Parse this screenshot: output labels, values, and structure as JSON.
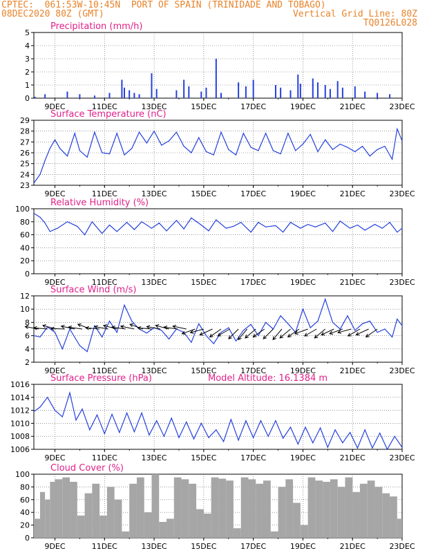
{
  "header": {
    "line1": "CPTEC:  061:53W-10:45N  PORT OF SPAIN (TRINIDADE AND TOBAGO)",
    "line2_left": "08DEC2020 80Z (GMT)",
    "line2_right": "Vertical Grid Line: 80Z",
    "line3_right": "TQ0126L028"
  },
  "colors": {
    "header": "#e8832a",
    "title": "#e0218a",
    "line": "#2440dc",
    "bar": "#2440dc",
    "cloud": "#a6a6a6",
    "grid": "#555555",
    "frame": "#000000"
  },
  "chart_data": [
    {
      "id": "precip",
      "type": "bar",
      "title": "Precipitation (mm/h)",
      "ylim": [
        0,
        5
      ],
      "yticks": [
        0,
        1,
        2,
        3,
        4,
        5
      ],
      "x_tick_labels": [
        "9DEC",
        "11DEC",
        "13DEC",
        "15DEC",
        "17DEC",
        "19DEC",
        "21DEC",
        "23DEC"
      ],
      "x_range_days": [
        8.15,
        23.0
      ],
      "x": [
        8.2,
        8.6,
        9.5,
        10.0,
        10.6,
        11.2,
        11.7,
        11.8,
        12.0,
        12.2,
        12.4,
        12.9,
        13.1,
        13.9,
        14.2,
        14.4,
        14.9,
        15.1,
        15.5,
        15.7,
        16.4,
        16.7,
        17.0,
        17.9,
        18.1,
        18.5,
        18.8,
        18.9,
        19.4,
        19.6,
        19.9,
        20.1,
        20.4,
        20.6,
        21.1,
        21.5,
        22.0,
        22.5
      ],
      "values": [
        0.1,
        0.3,
        0.5,
        0.3,
        0.2,
        0.4,
        1.4,
        0.8,
        0.6,
        0.4,
        0.3,
        1.9,
        0.7,
        0.6,
        1.4,
        0.9,
        0.5,
        0.8,
        3.0,
        0.4,
        1.2,
        0.9,
        1.4,
        1.0,
        0.8,
        0.6,
        1.8,
        1.1,
        1.5,
        1.2,
        1.0,
        0.7,
        1.3,
        0.8,
        0.9,
        0.5,
        0.4,
        0.3
      ]
    },
    {
      "id": "temp",
      "type": "line",
      "title": "Surface Temperature (nC)",
      "ylim": [
        23,
        29
      ],
      "yticks": [
        23,
        24,
        25,
        26,
        27,
        28,
        29
      ],
      "x_tick_labels": [
        "9DEC",
        "11DEC",
        "13DEC",
        "15DEC",
        "17DEC",
        "19DEC",
        "21DEC",
        "23DEC"
      ],
      "x_range_days": [
        8.15,
        23.0
      ],
      "x": [
        8.15,
        8.4,
        8.6,
        8.8,
        9.0,
        9.2,
        9.5,
        9.8,
        10.0,
        10.3,
        10.6,
        10.9,
        11.2,
        11.5,
        11.8,
        12.1,
        12.4,
        12.7,
        13.0,
        13.3,
        13.6,
        13.9,
        14.2,
        14.5,
        14.8,
        15.1,
        15.4,
        15.7,
        16.0,
        16.3,
        16.6,
        16.9,
        17.2,
        17.5,
        17.8,
        18.1,
        18.4,
        18.7,
        19.0,
        19.3,
        19.6,
        19.9,
        20.2,
        20.5,
        20.8,
        21.1,
        21.4,
        21.7,
        22.0,
        22.3,
        22.6,
        22.8,
        23.0
      ],
      "values": [
        23.2,
        24.0,
        25.3,
        26.4,
        27.2,
        26.4,
        25.7,
        27.8,
        26.2,
        25.6,
        27.9,
        26.0,
        25.9,
        27.8,
        25.8,
        26.4,
        27.9,
        26.9,
        28.0,
        26.7,
        27.1,
        27.9,
        26.6,
        26.0,
        27.4,
        26.1,
        25.8,
        27.9,
        26.3,
        25.8,
        27.8,
        26.5,
        26.2,
        27.8,
        26.2,
        25.9,
        27.8,
        26.2,
        26.8,
        27.7,
        26.1,
        27.2,
        26.3,
        26.8,
        26.5,
        26.1,
        26.6,
        25.7,
        26.3,
        26.6,
        25.4,
        28.2,
        27.1
      ]
    },
    {
      "id": "rh",
      "type": "line",
      "title": "Relative Humidity (%)",
      "ylim": [
        0,
        100
      ],
      "yticks": [
        0,
        20,
        40,
        60,
        80,
        100
      ],
      "x_tick_labels": [
        "9DEC",
        "11DEC",
        "13DEC",
        "15DEC",
        "17DEC",
        "19DEC",
        "21DEC",
        "23DEC"
      ],
      "x_range_days": [
        8.15,
        23.0
      ],
      "x": [
        8.15,
        8.4,
        8.6,
        8.8,
        9.1,
        9.5,
        9.9,
        10.2,
        10.5,
        10.9,
        11.2,
        11.5,
        11.9,
        12.2,
        12.5,
        12.9,
        13.2,
        13.5,
        13.9,
        14.2,
        14.5,
        14.9,
        15.2,
        15.5,
        15.9,
        16.2,
        16.5,
        16.9,
        17.2,
        17.5,
        17.9,
        18.2,
        18.5,
        18.9,
        19.2,
        19.5,
        19.9,
        20.2,
        20.5,
        20.9,
        21.2,
        21.5,
        21.9,
        22.2,
        22.5,
        22.8,
        23.0
      ],
      "values": [
        93,
        87,
        78,
        65,
        70,
        80,
        73,
        60,
        80,
        62,
        75,
        65,
        79,
        68,
        80,
        70,
        78,
        66,
        82,
        69,
        86,
        75,
        66,
        83,
        70,
        73,
        79,
        64,
        79,
        72,
        74,
        64,
        79,
        70,
        76,
        72,
        78,
        65,
        81,
        70,
        75,
        67,
        76,
        70,
        79,
        64,
        70
      ]
    },
    {
      "id": "wind",
      "type": "line",
      "title": "Surface Wind (m/s)",
      "ylim": [
        2,
        12
      ],
      "yticks": [
        2,
        4,
        6,
        8,
        10,
        12
      ],
      "x_tick_labels": [
        "9DEC",
        "11DEC",
        "13DEC",
        "15DEC",
        "17DEC",
        "19DEC",
        "21DEC",
        "23DEC"
      ],
      "x_range_days": [
        8.15,
        23.0
      ],
      "x": [
        8.15,
        8.4,
        8.7,
        9.0,
        9.3,
        9.6,
        10.0,
        10.3,
        10.6,
        10.9,
        11.2,
        11.5,
        11.8,
        12.1,
        12.4,
        12.7,
        13.0,
        13.3,
        13.6,
        13.9,
        14.2,
        14.5,
        14.8,
        15.1,
        15.4,
        15.7,
        16.0,
        16.3,
        16.6,
        16.9,
        17.2,
        17.5,
        17.8,
        18.1,
        18.4,
        18.7,
        19.0,
        19.3,
        19.6,
        19.9,
        20.2,
        20.5,
        20.8,
        21.1,
        21.4,
        21.7,
        22.0,
        22.3,
        22.6,
        22.8,
        23.0
      ],
      "values": [
        6.0,
        5.8,
        7.3,
        6.5,
        4.0,
        7.0,
        4.5,
        3.6,
        7.5,
        5.8,
        8.2,
        6.5,
        10.6,
        8.2,
        7.0,
        6.4,
        7.2,
        6.8,
        5.5,
        7.0,
        6.5,
        5.0,
        7.8,
        6.0,
        4.8,
        6.5,
        7.2,
        5.2,
        6.8,
        7.7,
        6.0,
        8.0,
        7.0,
        9.0,
        7.8,
        6.5,
        10.0,
        7.2,
        8.2,
        11.5,
        8.0,
        7.0,
        9.0,
        6.8,
        7.8,
        8.2,
        6.5,
        7.0,
        5.8,
        8.5,
        7.5
      ],
      "wind_barb_angles_deg": [
        170,
        175,
        165,
        178,
        168,
        172,
        160,
        175,
        170,
        165,
        172,
        168,
        160,
        175,
        170,
        165,
        172,
        168,
        200,
        195,
        205,
        215,
        210,
        225,
        230,
        220,
        215,
        225,
        230,
        220,
        215,
        200,
        210,
        220,
        205,
        200,
        195,
        210,
        205,
        215
      ],
      "wind_barb_x": [
        8.35,
        8.7,
        9.05,
        9.4,
        9.8,
        10.1,
        10.45,
        10.8,
        11.15,
        11.5,
        11.85,
        12.2,
        12.55,
        12.9,
        13.25,
        13.6,
        13.95,
        14.3,
        14.65,
        15.0,
        15.35,
        15.7,
        16.05,
        16.4,
        16.75,
        17.1,
        17.45,
        17.8,
        18.15,
        18.5,
        18.85,
        19.2,
        19.55,
        19.9,
        20.25,
        20.6,
        20.95,
        21.3,
        21.65,
        22.0
      ]
    },
    {
      "id": "pressure",
      "type": "line",
      "title": "Surface Pressure (hPa)",
      "annotation": "Model Altitude: 16.1384 m",
      "ylim": [
        1006,
        1016
      ],
      "yticks": [
        1006,
        1008,
        1010,
        1012,
        1014,
        1016
      ],
      "x_tick_labels": [
        "9DEC",
        "11DEC",
        "13DEC",
        "15DEC",
        "17DEC",
        "19DEC",
        "21DEC",
        "23DEC"
      ],
      "x_range_days": [
        8.15,
        23.0
      ],
      "x": [
        8.15,
        8.4,
        8.7,
        9.0,
        9.3,
        9.6,
        9.85,
        10.1,
        10.4,
        10.7,
        11.0,
        11.3,
        11.6,
        11.9,
        12.2,
        12.5,
        12.8,
        13.1,
        13.4,
        13.7,
        14.0,
        14.3,
        14.6,
        14.9,
        15.2,
        15.5,
        15.8,
        16.1,
        16.4,
        16.7,
        17.0,
        17.3,
        17.6,
        17.9,
        18.2,
        18.5,
        18.8,
        19.1,
        19.4,
        19.7,
        20.0,
        20.3,
        20.6,
        20.9,
        21.2,
        21.5,
        21.8,
        22.1,
        22.4,
        22.7,
        23.0
      ],
      "values": [
        1011.8,
        1012.5,
        1014.0,
        1012.0,
        1011.0,
        1014.7,
        1010.5,
        1012.2,
        1009.0,
        1011.3,
        1008.4,
        1011.4,
        1008.6,
        1011.6,
        1008.7,
        1011.6,
        1008.2,
        1010.4,
        1008.0,
        1010.8,
        1007.8,
        1010.2,
        1007.6,
        1010.0,
        1007.8,
        1009.0,
        1007.2,
        1010.6,
        1007.4,
        1010.4,
        1007.8,
        1010.4,
        1008.0,
        1010.4,
        1007.7,
        1009.4,
        1006.8,
        1009.4,
        1007.0,
        1009.3,
        1006.3,
        1009.0,
        1007.0,
        1008.6,
        1006.2,
        1009.0,
        1006.2,
        1008.5,
        1006.0,
        1008.0,
        1006.3
      ]
    },
    {
      "id": "cloud",
      "type": "area",
      "title": "Cloud Cover (%)",
      "ylim": [
        0,
        100
      ],
      "yticks": [
        0,
        20,
        40,
        60,
        80,
        100
      ],
      "x_tick_labels": [
        "9DEC",
        "11DEC",
        "13DEC",
        "15DEC",
        "17DEC",
        "19DEC",
        "21DEC",
        "23DEC"
      ],
      "x_range_days": [
        8.15,
        23.0
      ],
      "x": [
        8.15,
        8.4,
        8.6,
        8.8,
        9.0,
        9.3,
        9.6,
        9.9,
        10.2,
        10.5,
        10.8,
        11.1,
        11.4,
        11.7,
        12.0,
        12.3,
        12.6,
        12.9,
        13.2,
        13.5,
        13.8,
        14.1,
        14.4,
        14.7,
        15.0,
        15.3,
        15.6,
        15.9,
        16.2,
        16.5,
        16.8,
        17.1,
        17.4,
        17.7,
        18.0,
        18.3,
        18.6,
        18.9,
        19.2,
        19.5,
        19.8,
        20.1,
        20.4,
        20.7,
        21.0,
        21.3,
        21.6,
        21.9,
        22.2,
        22.5,
        22.8,
        23.0
      ],
      "values": [
        30,
        72,
        60,
        88,
        92,
        95,
        88,
        35,
        70,
        85,
        35,
        80,
        60,
        10,
        85,
        95,
        40,
        100,
        25,
        30,
        95,
        92,
        85,
        45,
        38,
        95,
        93,
        90,
        15,
        95,
        92,
        85,
        90,
        10,
        80,
        92,
        55,
        20,
        95,
        90,
        88,
        92,
        80,
        95,
        72,
        85,
        90,
        80,
        70,
        65,
        30,
        10
      ]
    }
  ]
}
